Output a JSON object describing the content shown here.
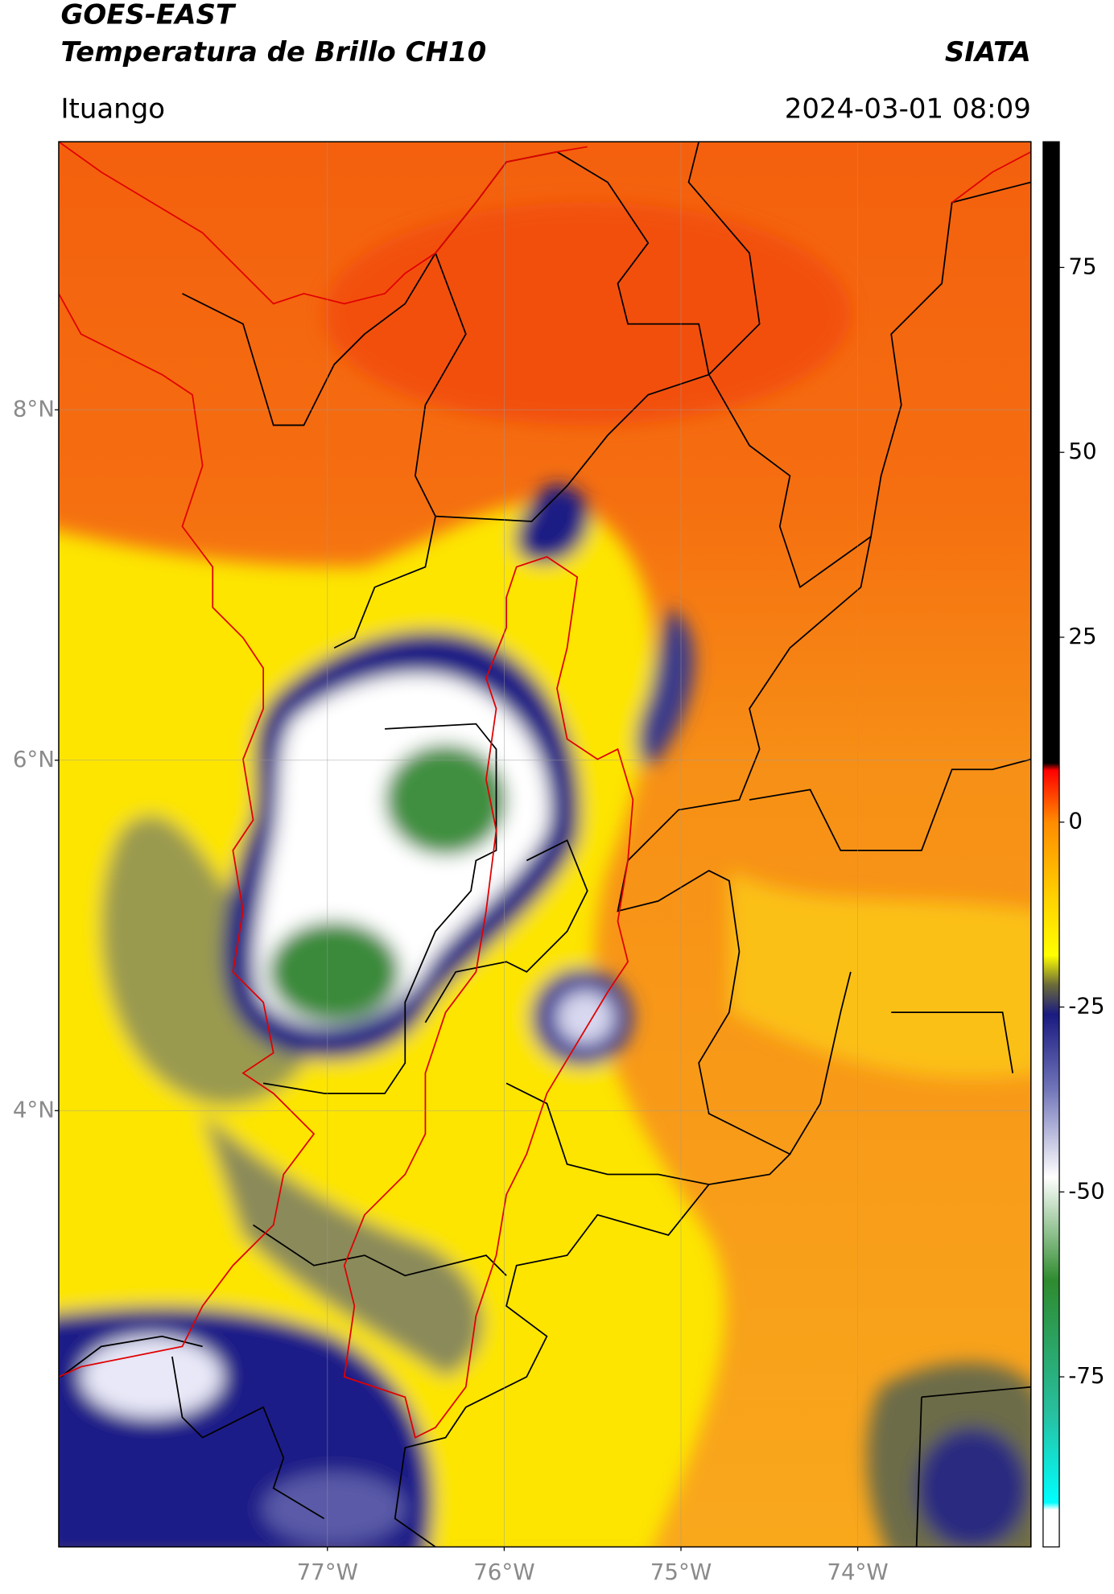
{
  "header": {
    "satellite": "GOES-EAST",
    "title": "Temperatura de Brillo CH10",
    "agency": "SIATA",
    "region": "Ituango",
    "datetime": "2024-03-01 08:09"
  },
  "map": {
    "xlim": [
      -78.52,
      -73.02
    ],
    "ylim": [
      1.51,
      9.53
    ],
    "lon_ticks": [
      {
        "value": -77,
        "label": "77°W"
      },
      {
        "value": -76,
        "label": "76°W"
      },
      {
        "value": -75,
        "label": "75°W"
      },
      {
        "value": -74,
        "label": "74°W"
      }
    ],
    "lat_ticks": [
      {
        "value": 8,
        "label": "8°N"
      },
      {
        "value": 6,
        "label": "6°N"
      },
      {
        "value": 4,
        "label": "4°N"
      }
    ],
    "grid": true,
    "colorbar": {
      "lim": [
        -98,
        92
      ],
      "ticks": [
        75,
        50,
        25,
        0,
        -25,
        -50,
        -75
      ],
      "stops": [
        {
          "value": 92,
          "color": "#000000"
        },
        {
          "value": 8,
          "color": "#000000"
        },
        {
          "value": 7,
          "color": "#ff0000"
        },
        {
          "value": 0,
          "color": "#ff8c00"
        },
        {
          "value": -10,
          "color": "#ffd000"
        },
        {
          "value": -18,
          "color": "#ffff00"
        },
        {
          "value": -22,
          "color": "#6b6b3a"
        },
        {
          "value": -26,
          "color": "#1a1a80"
        },
        {
          "value": -36,
          "color": "#7074b8"
        },
        {
          "value": -48,
          "color": "#ffffff"
        },
        {
          "value": -62,
          "color": "#2e8b2e"
        },
        {
          "value": -80,
          "color": "#27c0a0"
        },
        {
          "value": -92,
          "color": "#00ffff"
        },
        {
          "value": -93,
          "color": "#ffffff"
        },
        {
          "value": -98,
          "color": "#ffffff"
        }
      ]
    }
  }
}
